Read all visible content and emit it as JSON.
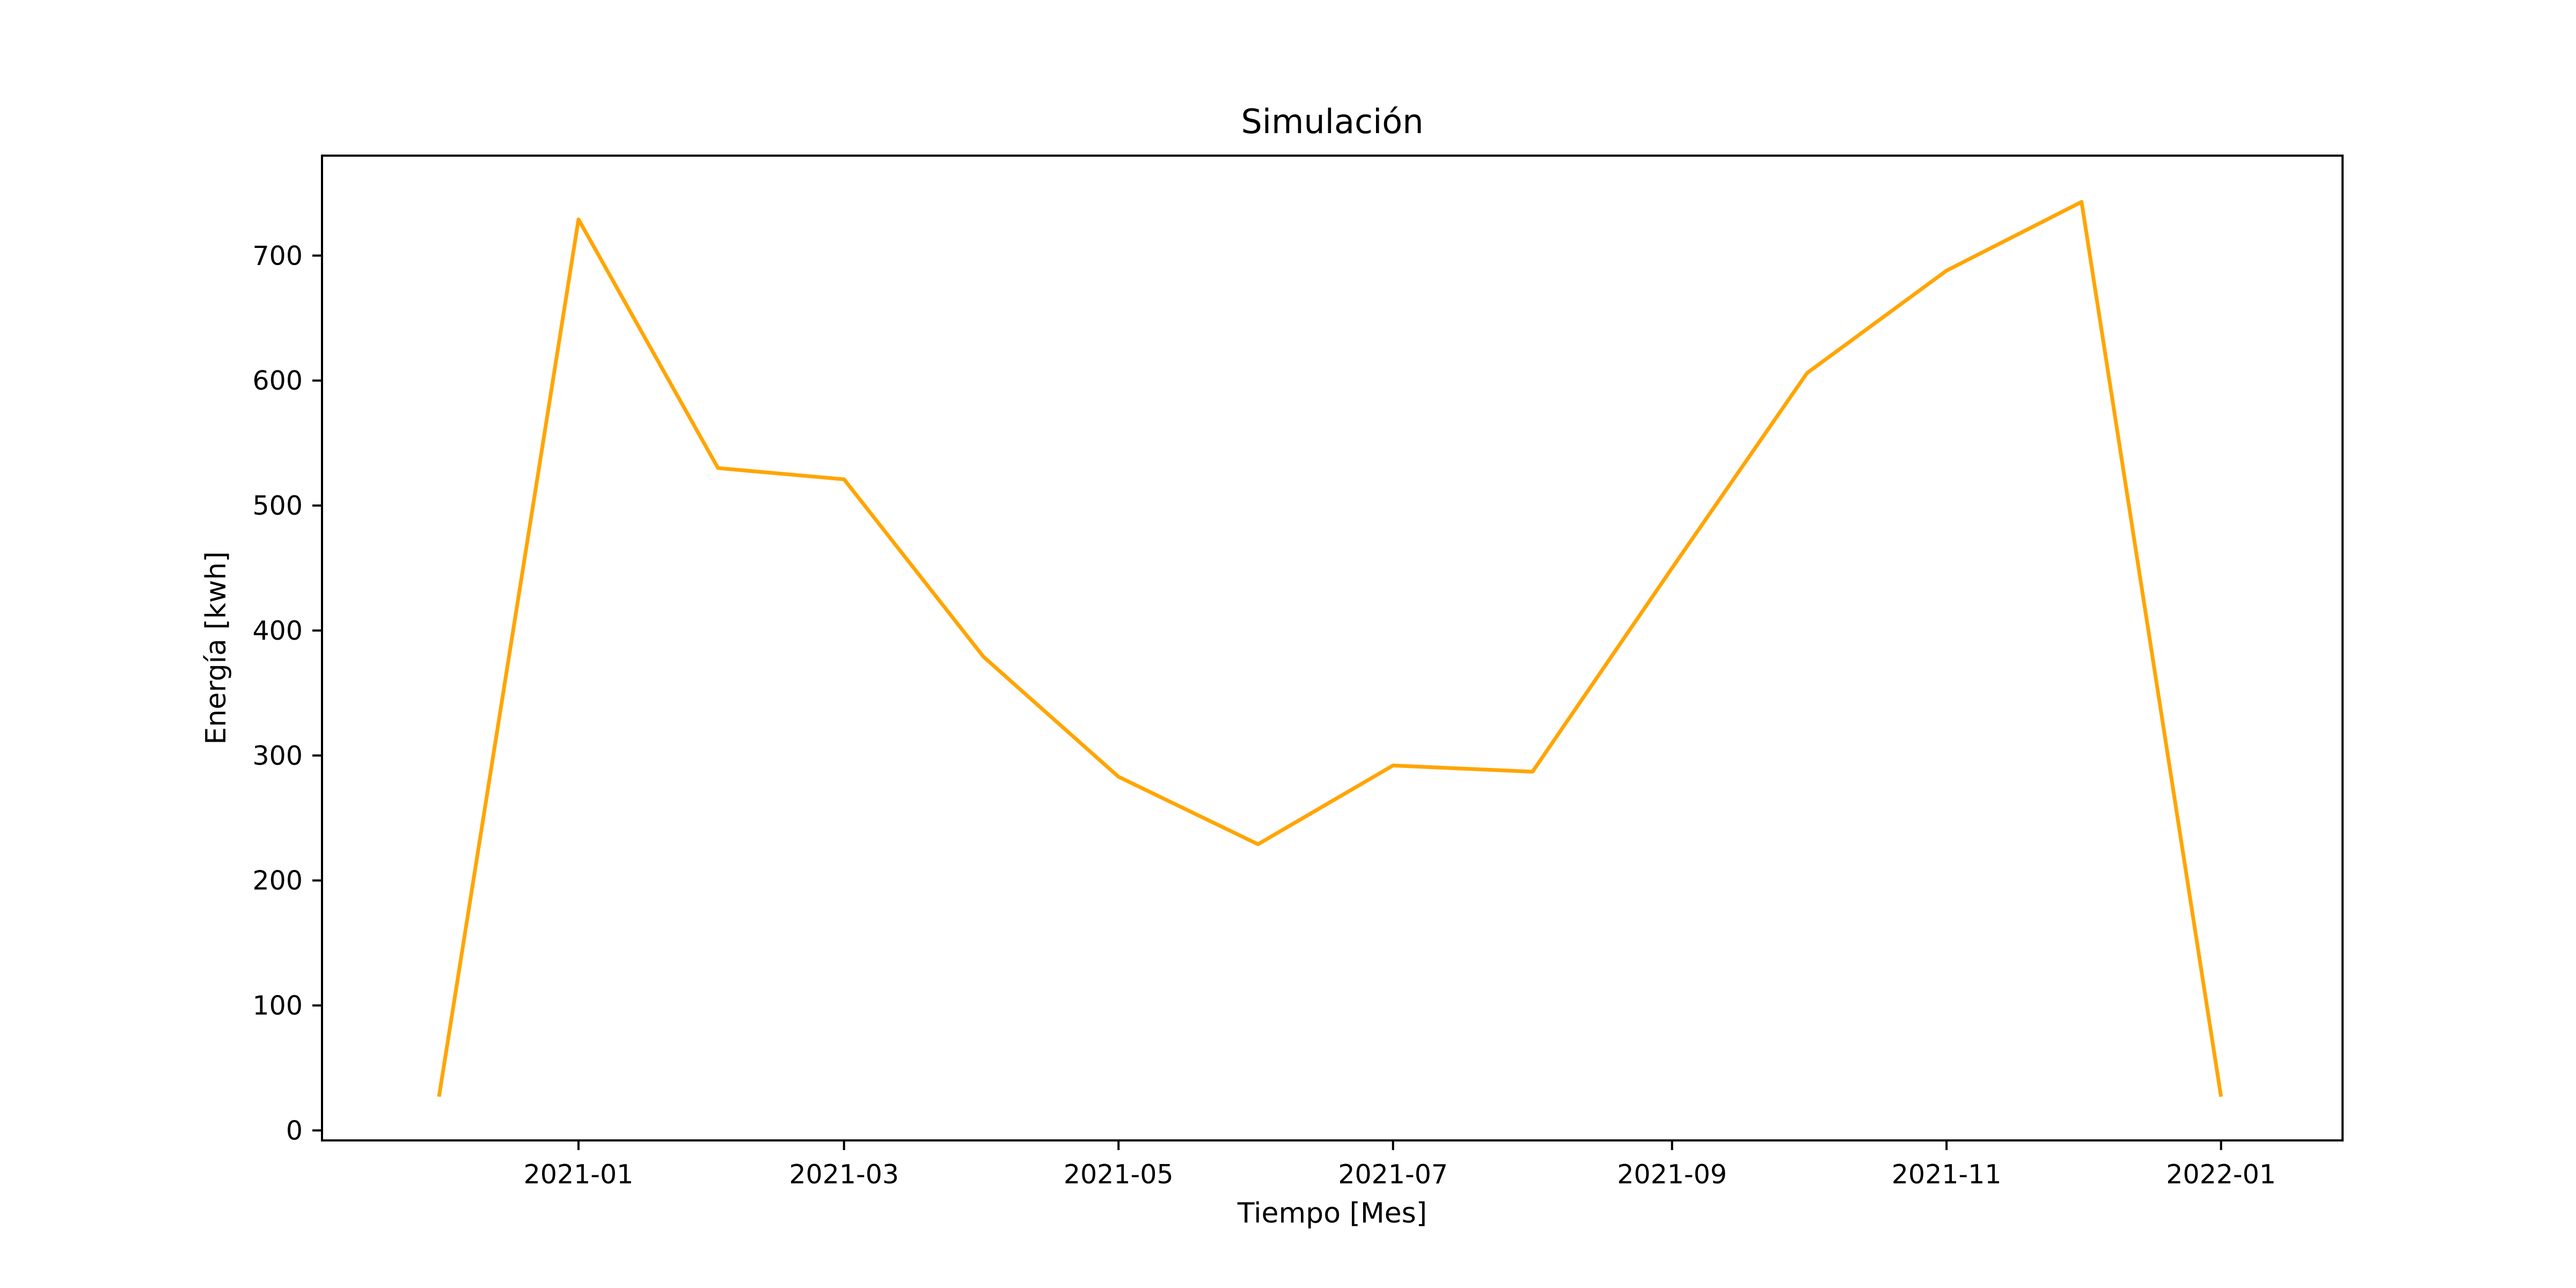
{
  "chart_data": {
    "type": "line",
    "title": "Simulación",
    "xlabel": "Tiempo [Mes]",
    "ylabel": "Energía [kwh]",
    "x_axis_kind": "date",
    "xlim": [
      "2020-11-05",
      "2022-01-28"
    ],
    "ylim": [
      -8,
      780
    ],
    "x_ticks": [
      {
        "date": "2021-01-01",
        "label": "2021-01"
      },
      {
        "date": "2021-03-01",
        "label": "2021-03"
      },
      {
        "date": "2021-05-01",
        "label": "2021-05"
      },
      {
        "date": "2021-07-01",
        "label": "2021-07"
      },
      {
        "date": "2021-09-01",
        "label": "2021-09"
      },
      {
        "date": "2021-11-01",
        "label": "2021-11"
      },
      {
        "date": "2022-01-01",
        "label": "2022-01"
      }
    ],
    "y_ticks": [
      0,
      100,
      200,
      300,
      400,
      500,
      600,
      700
    ],
    "grid": false,
    "legend": "none",
    "series": [
      {
        "color": "#FFA500",
        "x": [
          "2020-12-01",
          "2021-01-01",
          "2021-02-01",
          "2021-03-01",
          "2021-04-01",
          "2021-05-01",
          "2021-06-01",
          "2021-07-01",
          "2021-08-01",
          "2021-09-01",
          "2021-10-01",
          "2021-11-01",
          "2021-12-01",
          "2022-01-01"
        ],
        "values": [
          27,
          729,
          530,
          521,
          379,
          283,
          229,
          292,
          287,
          450,
          606,
          688,
          743,
          27
        ]
      }
    ]
  }
}
